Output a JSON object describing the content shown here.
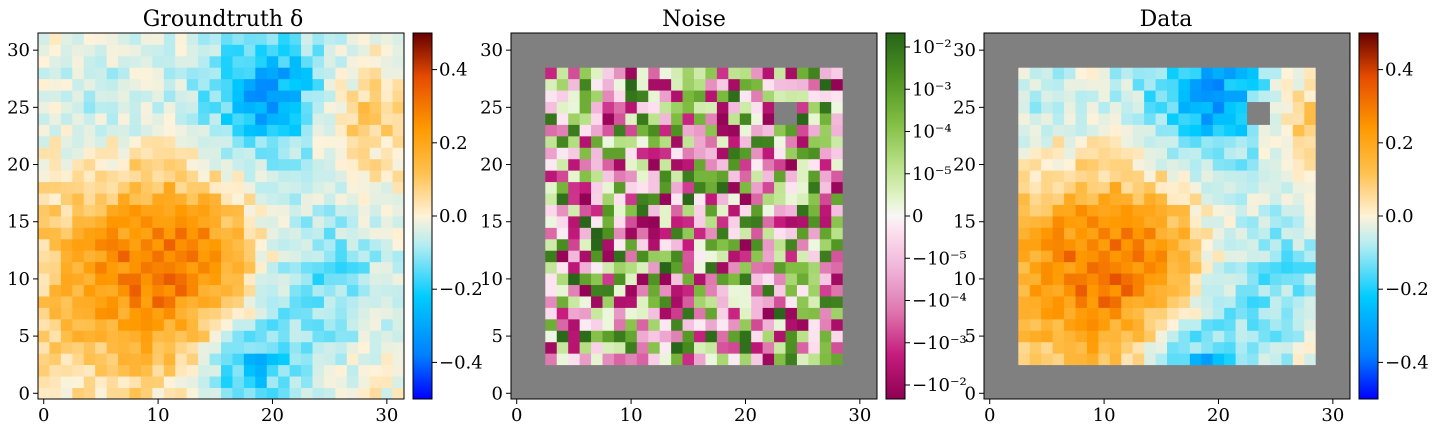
{
  "chart_data": [
    {
      "type": "heatmap",
      "title": "Groundtruth δ",
      "grid_size": 32,
      "xlim": [
        -0.5,
        31.5
      ],
      "ylim": [
        -0.5,
        31.5
      ],
      "xticks": [
        0,
        10,
        20,
        30
      ],
      "yticks": [
        0,
        5,
        10,
        15,
        20,
        25,
        30
      ],
      "xtick_labels": [
        "0",
        "10",
        "20",
        "30"
      ],
      "ytick_labels": [
        "0",
        "5",
        "10",
        "15",
        "20",
        "25",
        "30"
      ],
      "colormap": "diverging blue-cyan-cream-orange-darkred",
      "vmin": -0.5,
      "vmax": 0.5,
      "colorbar_ticks": [
        0.4,
        0.2,
        0.0,
        -0.2,
        -0.4
      ],
      "colorbar_tick_labels": [
        "0.4",
        "0.2",
        "0.0",
        "−0.2",
        "−0.4"
      ],
      "values": []
    },
    {
      "type": "heatmap",
      "title": "Noise",
      "grid_size": 32,
      "xlim": [
        -0.5,
        31.5
      ],
      "ylim": [
        -0.5,
        31.5
      ],
      "xticks": [
        0,
        10,
        20,
        30
      ],
      "yticks": [
        0,
        5,
        10,
        15,
        20,
        25,
        30
      ],
      "xtick_labels": [
        "0",
        "10",
        "20",
        "30"
      ],
      "ytick_labels": [
        "0",
        "5",
        "10",
        "15",
        "20",
        "25",
        "30"
      ],
      "colormap": "symlog PiYG (magenta negative, green positive)",
      "scale": "symlog",
      "masked_region_color": "#808080",
      "valid_region": {
        "x": [
          3,
          28
        ],
        "y": [
          3,
          28
        ]
      },
      "masked_pixels": [
        [
          23,
          24
        ],
        [
          23,
          25
        ],
        [
          24,
          24
        ],
        [
          24,
          25
        ]
      ],
      "colorbar_tick_labels": [
        "10⁻²",
        "10⁻³",
        "10⁻⁴",
        "10⁻⁵",
        "0",
        "−10⁻⁵",
        "−10⁻⁴",
        "−10⁻³",
        "−10⁻²"
      ],
      "values": []
    },
    {
      "type": "heatmap",
      "title": "Data",
      "grid_size": 32,
      "xlim": [
        -0.5,
        31.5
      ],
      "ylim": [
        -0.5,
        31.5
      ],
      "xticks": [
        0,
        10,
        20,
        30
      ],
      "yticks": [
        0,
        5,
        10,
        15,
        20,
        25,
        30
      ],
      "xtick_labels": [
        "0",
        "10",
        "20",
        "30"
      ],
      "ytick_labels": [
        "0",
        "5",
        "10",
        "15",
        "20",
        "25",
        "30"
      ],
      "colormap": "diverging blue-cyan-cream-orange-darkred",
      "vmin": -0.5,
      "vmax": 0.5,
      "masked_region_color": "#808080",
      "valid_region": {
        "x": [
          3,
          28
        ],
        "y": [
          3,
          28
        ]
      },
      "masked_pixels": [
        [
          23,
          24
        ],
        [
          23,
          25
        ],
        [
          24,
          24
        ],
        [
          24,
          25
        ]
      ],
      "colorbar_ticks": [
        0.4,
        0.2,
        0.0,
        -0.2,
        -0.4
      ],
      "colorbar_tick_labels": [
        "0.4",
        "0.2",
        "0.0",
        "−0.2",
        "−0.4"
      ],
      "values": []
    }
  ],
  "colors": {
    "mask_gray": "#808080",
    "diverging_stops": [
      "#0000ff",
      "#0080ff",
      "#00ccff",
      "#b3ecf2",
      "#fff2d9",
      "#ffc04d",
      "#ff9900",
      "#e64c00",
      "#660000"
    ],
    "noise_stops": [
      "#8e0152",
      "#c51b7d",
      "#de77ae",
      "#f1b6da",
      "#fde0ef",
      "#f7f7f7",
      "#e6f5d0",
      "#b8e186",
      "#7fbc41",
      "#4d9221",
      "#276419"
    ]
  }
}
